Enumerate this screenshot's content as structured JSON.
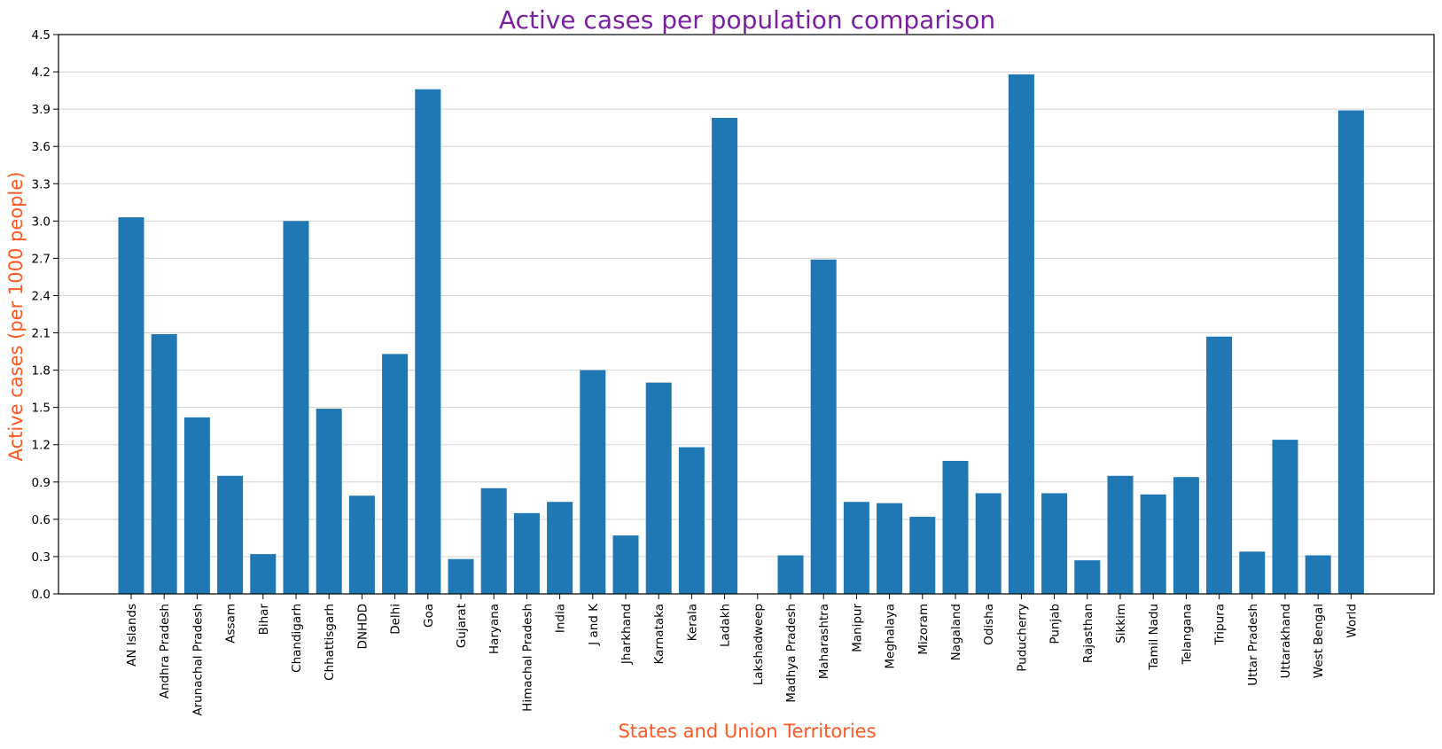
{
  "chart_data": {
    "type": "bar",
    "title": "Active cases per population comparison",
    "xlabel": "States and Union Territories",
    "ylabel": "Active cases (per 1000 people)",
    "ylim": [
      0,
      4.5
    ],
    "yticks": [
      "0.0",
      "0.3",
      "0.6",
      "0.9",
      "1.2",
      "1.5",
      "1.8",
      "2.1",
      "2.4",
      "2.7",
      "3.0",
      "3.3",
      "3.6",
      "3.9",
      "4.2",
      "4.5"
    ],
    "grid": "horizontal",
    "categories": [
      "AN Islands",
      "Andhra Pradesh",
      "Arunachal Pradesh",
      "Assam",
      "Bihar",
      "Chandigarh",
      "Chhattisgarh",
      "DNHDD",
      "Delhi",
      "Goa",
      "Gujarat",
      "Haryana",
      "Himachal Pradesh",
      "India",
      "J and K",
      "Jharkhand",
      "Karnataka",
      "Kerala",
      "Ladakh",
      "Lakshadweep",
      "Madhya Pradesh",
      "Maharashtra",
      "Manipur",
      "Meghalaya",
      "Mizoram",
      "Nagaland",
      "Odisha",
      "Puducherry",
      "Punjab",
      "Rajasthan",
      "Sikkim",
      "Tamil Nadu",
      "Telangana",
      "Tripura",
      "Uttar Pradesh",
      "Uttarakhand",
      "West Bengal",
      "World"
    ],
    "values": [
      3.03,
      2.09,
      1.42,
      0.95,
      0.32,
      3.0,
      1.49,
      0.79,
      1.93,
      4.06,
      0.28,
      0.85,
      0.65,
      0.74,
      1.8,
      0.47,
      1.7,
      1.18,
      3.83,
      0.0,
      0.31,
      2.69,
      0.74,
      0.73,
      0.62,
      1.07,
      0.81,
      4.18,
      0.81,
      0.27,
      0.95,
      0.8,
      0.94,
      2.07,
      0.34,
      1.24,
      0.31,
      3.89
    ],
    "colors": {
      "bar": "#1f77b4",
      "title": "#7b1fa2",
      "axis_label": "#ff5722",
      "grid": "#d3d3d3"
    }
  }
}
